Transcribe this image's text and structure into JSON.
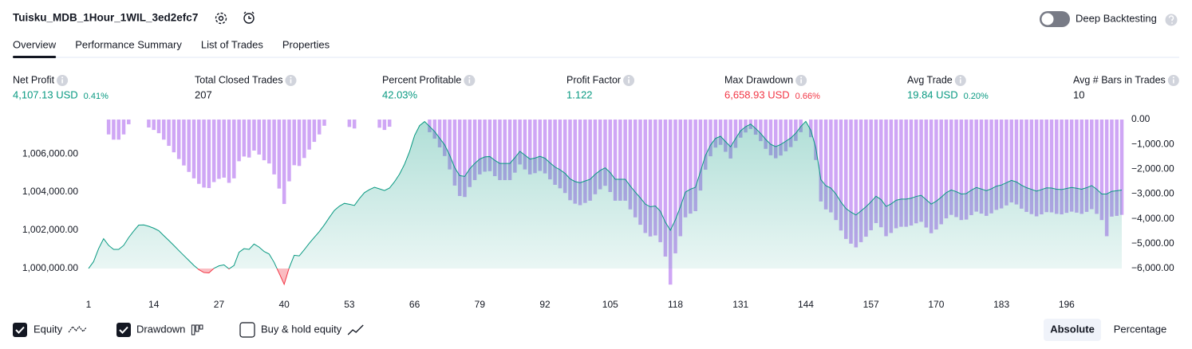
{
  "header": {
    "title": "Tuisku_MDB_1Hour_1WIL_3ed2efc7",
    "deep_backtesting": {
      "label": "Deep Backtesting",
      "enabled": false
    }
  },
  "tabs": {
    "items": [
      "Overview",
      "Performance Summary",
      "List of Trades",
      "Properties"
    ],
    "active": 0
  },
  "metrics": [
    {
      "label": "Net Profit",
      "value": "4,107.13 USD",
      "percent": "0.41%",
      "color": "#089981"
    },
    {
      "label": "Total Closed Trades",
      "value": "207",
      "color": "#131722"
    },
    {
      "label": "Percent Profitable",
      "value": "42.03%",
      "color": "#089981"
    },
    {
      "label": "Profit Factor",
      "value": "1.122",
      "color": "#089981"
    },
    {
      "label": "Max Drawdown",
      "value": "6,658.93 USD",
      "percent": "0.66%",
      "color": "#f23645"
    },
    {
      "label": "Avg Trade",
      "value": "19.84 USD",
      "percent": "0.20%",
      "color": "#089981"
    },
    {
      "label": "Avg # Bars in Trades",
      "value": "10",
      "color": "#131722"
    }
  ],
  "chart_data": {
    "type": "equity-drawdown",
    "x": [
      1,
      2,
      3,
      4,
      5,
      6,
      7,
      8,
      9,
      10,
      11,
      12,
      13,
      14,
      15,
      16,
      17,
      18,
      19,
      20,
      21,
      22,
      23,
      24,
      25,
      26,
      27,
      28,
      29,
      30,
      31,
      32,
      33,
      34,
      35,
      36,
      37,
      38,
      39,
      40,
      41,
      42,
      43,
      44,
      45,
      46,
      47,
      48,
      49,
      50,
      51,
      52,
      53,
      54,
      55,
      56,
      57,
      58,
      59,
      60,
      61,
      62,
      63,
      64,
      65,
      66,
      67,
      68,
      69,
      70,
      71,
      72,
      73,
      74,
      75,
      76,
      77,
      78,
      79,
      80,
      81,
      82,
      83,
      84,
      85,
      86,
      87,
      88,
      89,
      90,
      91,
      92,
      93,
      94,
      95,
      96,
      97,
      98,
      99,
      100,
      101,
      102,
      103,
      104,
      105,
      106,
      107,
      108,
      109,
      110,
      111,
      112,
      113,
      114,
      115,
      116,
      117,
      118,
      119,
      120,
      121,
      122,
      123,
      124,
      125,
      126,
      127,
      128,
      129,
      130,
      131,
      132,
      133,
      134,
      135,
      136,
      137,
      138,
      139,
      140,
      141,
      142,
      143,
      144,
      145,
      146,
      147,
      148,
      149,
      150,
      151,
      152,
      153,
      154,
      155,
      156,
      157,
      158,
      159,
      160,
      161,
      162,
      163,
      164,
      165,
      166,
      167,
      168,
      169,
      170,
      171,
      172,
      173,
      174,
      175,
      176,
      177,
      178,
      179,
      180,
      181,
      182,
      183,
      184,
      185,
      186,
      187,
      188,
      189,
      190,
      191,
      192,
      193,
      194,
      195,
      196,
      197,
      198,
      199,
      200,
      201,
      202,
      203,
      204,
      205,
      206,
      207
    ],
    "xlim": [
      1,
      207
    ],
    "xticks": [
      1,
      14,
      27,
      40,
      53,
      66,
      79,
      92,
      105,
      118,
      131,
      144,
      157,
      170,
      183,
      196
    ],
    "ylim": [
      999040,
      1007880
    ],
    "yticks": [
      {
        "value": 1000000,
        "label": "1,000,000.00"
      },
      {
        "value": 1002000,
        "label": "1,002,000.00"
      },
      {
        "value": 1004000,
        "label": "1,004,000.00"
      },
      {
        "value": 1006000,
        "label": "1,006,000.00"
      }
    ],
    "y2lim": [
      -6740,
      65
    ],
    "y2ticks": [
      {
        "value": 0,
        "label": "0.00"
      },
      {
        "value": -1000,
        "label": "−1,000.00"
      },
      {
        "value": -2000,
        "label": "−2,000.00"
      },
      {
        "value": -3000,
        "label": "−3,000.00"
      },
      {
        "value": -4000,
        "label": "−4,000.00"
      },
      {
        "value": -5000,
        "label": "−5,000.00"
      },
      {
        "value": -6000,
        "label": "−6,000.00"
      }
    ],
    "series": [
      {
        "name": "Equity",
        "color": "#089981",
        "negative_color": "#f23645",
        "visible": true,
        "values": [
          1000000,
          1000360,
          1001040,
          1001560,
          1001210,
          1001000,
          1001000,
          1001210,
          1001620,
          1001960,
          1002270,
          1002280,
          1002210,
          1002110,
          1001980,
          1001720,
          1001470,
          1001210,
          1000940,
          1000680,
          1000420,
          1000160,
          999940,
          999790,
          999770,
          1000010,
          1000140,
          1000190,
          999980,
          1000160,
          1000850,
          1001040,
          1001000,
          1001280,
          1001120,
          1000890,
          1000760,
          1000320,
          999750,
          999170,
          1000040,
          1000690,
          1000660,
          1000980,
          1001320,
          1001630,
          1001930,
          1002280,
          1002670,
          1003040,
          1003260,
          1003410,
          1003360,
          1003300,
          1003660,
          1003970,
          1004130,
          1004250,
          1004170,
          1004080,
          1004210,
          1004540,
          1004940,
          1005460,
          1006120,
          1006960,
          1007480,
          1007690,
          1007430,
          1007170,
          1006820,
          1006470,
          1005930,
          1005280,
          1004860,
          1004820,
          1005220,
          1005500,
          1005730,
          1005840,
          1005860,
          1005660,
          1005500,
          1005500,
          1005500,
          1005800,
          1006130,
          1005930,
          1005730,
          1005780,
          1005870,
          1005770,
          1005530,
          1005310,
          1005170,
          1004980,
          1004690,
          1004550,
          1004490,
          1004580,
          1004670,
          1004930,
          1005130,
          1005270,
          1005020,
          1004670,
          1004670,
          1004670,
          1004320,
          1004000,
          1003700,
          1003370,
          1003230,
          1003270,
          1003000,
          1002420,
          1002000,
          1002550,
          1003240,
          1004000,
          1004150,
          1004250,
          1005080,
          1005920,
          1006460,
          1006810,
          1006920,
          1006640,
          1006370,
          1006800,
          1007210,
          1007420,
          1007560,
          1007330,
          1007070,
          1006760,
          1006500,
          1006380,
          1006490,
          1006660,
          1006830,
          1007080,
          1007430,
          1007700,
          1007240,
          1006320,
          1004650,
          1004330,
          1004210,
          1003900,
          1003480,
          1003140,
          1002950,
          1002800,
          1003010,
          1003230,
          1003490,
          1003780,
          1003610,
          1003250,
          1003380,
          1003570,
          1003630,
          1003630,
          1003680,
          1003770,
          1003830,
          1003600,
          1003370,
          1003520,
          1003730,
          1003970,
          1004110,
          1004020,
          1003900,
          1003920,
          1004100,
          1004240,
          1004160,
          1004070,
          1004170,
          1004310,
          1004370,
          1004490,
          1004610,
          1004530,
          1004360,
          1004230,
          1004140,
          1004050,
          1004130,
          1004220,
          1004210,
          1004150,
          1004130,
          1004190,
          1004240,
          1004200,
          1004150,
          1004230,
          1004340,
          1004150,
          1003900,
          1003900,
          1004040,
          1004070,
          1004107.13
        ]
      },
      {
        "name": "Drawdown",
        "color": "#cfa6f5",
        "axis": "y2",
        "visible": true,
        "values": [
          0,
          0,
          0,
          0,
          -600,
          -810,
          -810,
          -600,
          -190,
          0,
          0,
          0,
          -320,
          -420,
          -550,
          -810,
          -1060,
          -1320,
          -1590,
          -1850,
          -2110,
          -2370,
          -2590,
          -2740,
          -2760,
          -2520,
          -2390,
          -2340,
          -2550,
          -2370,
          -1680,
          -1490,
          -1530,
          -1250,
          -1410,
          -1640,
          -1770,
          -2210,
          -2780,
          -3400,
          -2490,
          -1840,
          -1870,
          -1550,
          -1210,
          -900,
          -600,
          -250,
          0,
          0,
          0,
          0,
          -300,
          -360,
          0,
          0,
          0,
          0,
          -330,
          -420,
          -290,
          0,
          0,
          0,
          0,
          0,
          0,
          0,
          -510,
          -770,
          -1120,
          -1470,
          -2010,
          -2660,
          -3080,
          -3120,
          -2720,
          -2440,
          -2210,
          -2100,
          -2080,
          -2280,
          -2440,
          -2440,
          -2440,
          -2140,
          -1810,
          -2010,
          -2210,
          -2160,
          -2070,
          -2170,
          -2410,
          -2630,
          -2770,
          -2960,
          -3250,
          -3390,
          -3450,
          -3360,
          -3270,
          -3010,
          -2810,
          -2670,
          -2920,
          -3270,
          -3270,
          -3270,
          -3620,
          -3940,
          -4240,
          -4570,
          -4710,
          -4670,
          -4940,
          -5520,
          -6650,
          -5390,
          -4700,
          -3940,
          -3790,
          -3690,
          -2860,
          -2020,
          -1480,
          -1130,
          -1020,
          -1300,
          -1570,
          -1140,
          -730,
          -520,
          -380,
          -610,
          -870,
          -1180,
          -1440,
          -1560,
          -1450,
          -1280,
          -1110,
          -860,
          -510,
          0,
          -710,
          -1630,
          -3300,
          -3620,
          -3740,
          -4050,
          -4470,
          -4810,
          -5000,
          -5150,
          -4940,
          -4720,
          -4460,
          -4170,
          -4340,
          -4700,
          -4570,
          -4380,
          -4320,
          -4320,
          -4270,
          -4180,
          -4120,
          -4350,
          -4580,
          -4430,
          -4220,
          -3980,
          -3840,
          -3930,
          -4050,
          -4030,
          -3850,
          -3710,
          -3790,
          -3880,
          -3780,
          -3640,
          -3580,
          -3460,
          -3340,
          -3420,
          -3590,
          -3720,
          -3810,
          -3900,
          -3820,
          -3730,
          -3740,
          -3800,
          -3820,
          -3760,
          -3710,
          -3750,
          -3800,
          -3720,
          -3610,
          -3800,
          -4050,
          -4700,
          -3910,
          -3880,
          -3840
        ]
      }
    ]
  },
  "footer": {
    "extra_series": {
      "name": "Buy & hold equity",
      "visible": false
    },
    "scale_buttons": [
      "Absolute",
      "Percentage"
    ],
    "scale_active": 0
  }
}
